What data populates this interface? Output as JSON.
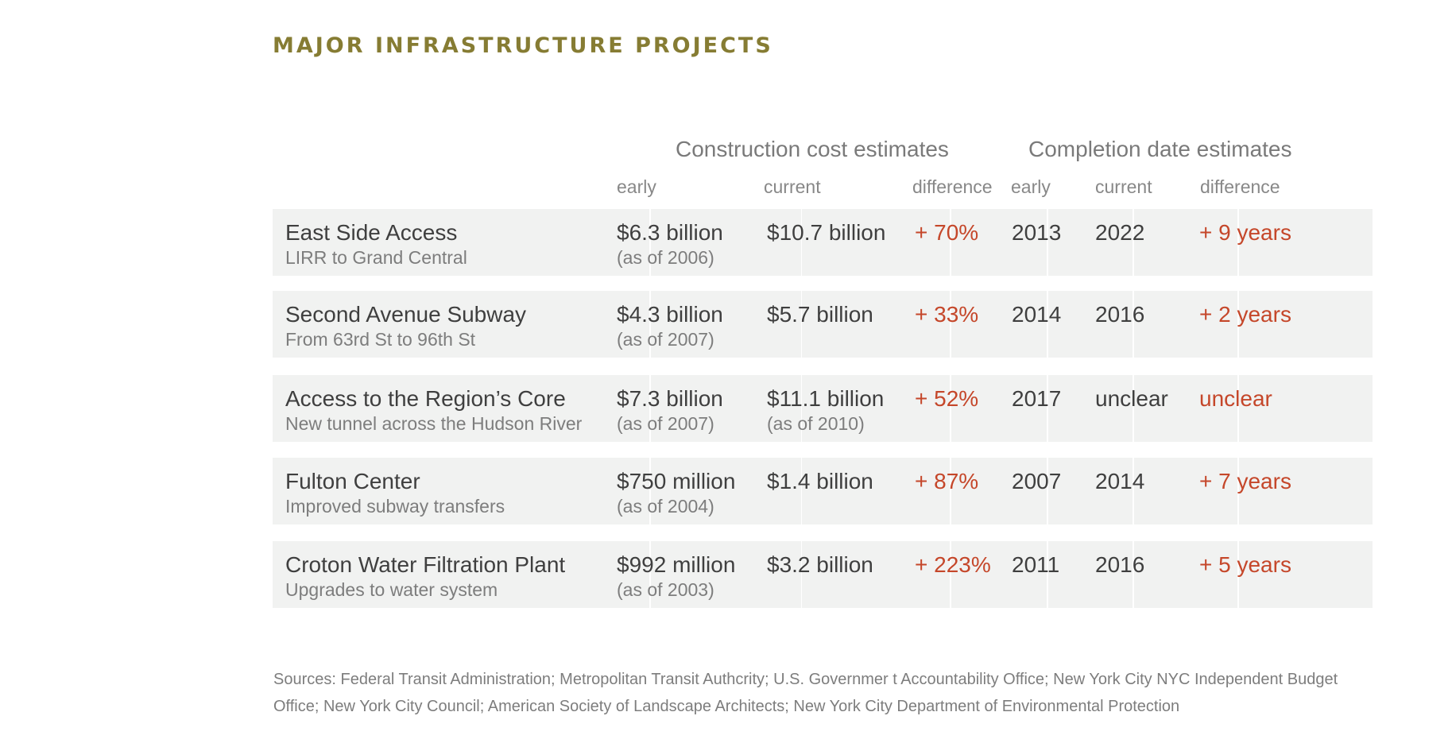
{
  "title": "MAJOR INFRASTRUCTURE PROJECTS",
  "column_groups": {
    "cost": "Construction cost estimates",
    "date": "Completion date estimates"
  },
  "column_headers": {
    "cost_early": "early",
    "cost_current": "current",
    "cost_difference": "difference",
    "date_early": "early",
    "date_current": "current",
    "date_difference": "difference"
  },
  "chart_data": {
    "type": "table",
    "title": "MAJOR INFRASTRUCTURE PROJECTS",
    "columns": [
      "Project",
      "Cost early",
      "Cost current",
      "Cost difference",
      "Completion early",
      "Completion current",
      "Completion difference"
    ],
    "rows": [
      {
        "name": "East Side Access",
        "subtitle": "LIRR to Grand Central",
        "cost_early": "$6.3 billion",
        "cost_early_note": "(as of 2006)",
        "cost_current": "$10.7 billion",
        "cost_current_note": "",
        "cost_diff": "+ 70%",
        "date_early": "2013",
        "date_current": "2022",
        "date_diff": "+ 9 years"
      },
      {
        "name": "Second Avenue Subway",
        "subtitle": "From 63rd St to 96th St",
        "cost_early": "$4.3 billion",
        "cost_early_note": "(as of 2007)",
        "cost_current": "$5.7 billion",
        "cost_current_note": "",
        "cost_diff": "+ 33%",
        "date_early": "2014",
        "date_current": "2016",
        "date_diff": "+ 2 years"
      },
      {
        "name": "Access to the Region’s Core",
        "subtitle": "New tunnel across the Hudson River",
        "cost_early": "$7.3 billion",
        "cost_early_note": "(as of 2007)",
        "cost_current": "$11.1 billion",
        "cost_current_note": "(as of 2010)",
        "cost_diff": "+ 52%",
        "date_early": "2017",
        "date_current": "unclear",
        "date_diff": "unclear"
      },
      {
        "name": "Fulton Center",
        "subtitle": "Improved subway transfers",
        "cost_early": "$750 million",
        "cost_early_note": "(as of 2004)",
        "cost_current": "$1.4 billion",
        "cost_current_note": "",
        "cost_diff": "+ 87%",
        "date_early": "2007",
        "date_current": "2014",
        "date_diff": "+ 7 years"
      },
      {
        "name": "Croton Water Filtration Plant",
        "subtitle": "Upgrades to water system",
        "cost_early": "$992 million",
        "cost_early_note": "(as of 2003)",
        "cost_current": "$3.2 billion",
        "cost_current_note": "",
        "cost_diff": "+ 223%",
        "date_early": "2011",
        "date_current": "2016",
        "date_diff": "+ 5 years"
      }
    ]
  },
  "sources": "Sources: Federal Transit Administration; Metropolitan Transit Authcrity; U.S. Governmer t Accountability Office; New York City NYC Independent Budget Office; New York City Council; American Society of Landscape Architects; New York City Department of Environmental Protection"
}
